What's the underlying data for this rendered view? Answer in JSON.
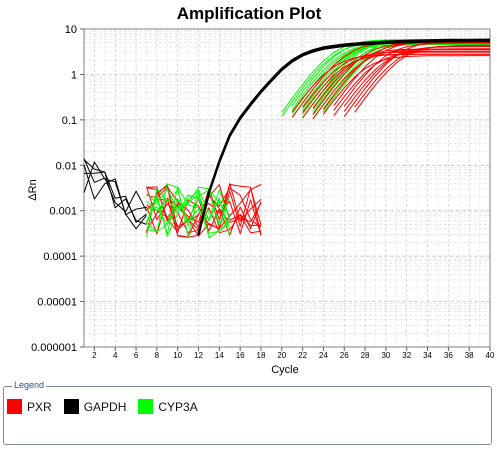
{
  "chart_data": {
    "type": "line",
    "title": "Amplification Plot",
    "xlabel": "Cycle",
    "ylabel": "ΔRn",
    "xlim": [
      1,
      40
    ],
    "ylim": [
      1e-06,
      10
    ],
    "yscale": "log",
    "grid": true,
    "x_ticks": [
      2,
      4,
      6,
      8,
      10,
      12,
      14,
      16,
      18,
      20,
      22,
      24,
      26,
      28,
      30,
      32,
      34,
      36,
      38,
      40
    ],
    "y_ticks": [
      {
        "value": 10,
        "label": "10"
      },
      {
        "value": 1,
        "label": "1"
      },
      {
        "value": 0.1,
        "label": "0.1"
      },
      {
        "value": 0.01,
        "label": "0.01"
      },
      {
        "value": 0.001,
        "label": "0.001"
      },
      {
        "value": 0.0001,
        "label": "0.0001"
      },
      {
        "value": 1e-05,
        "label": "0.00001"
      },
      {
        "value": 1e-06,
        "label": "0.000001"
      }
    ],
    "legend_position": "bottom",
    "series": [
      {
        "name": "PXR",
        "color": "#ff0000",
        "group_description": "approx. 18 wells",
        "baseline_x": [
          7,
          8,
          9,
          10,
          11,
          12,
          13,
          14,
          15,
          16,
          17,
          18
        ],
        "ct_range": [
          22,
          28
        ],
        "plateau": [
          2.5,
          5.5
        ]
      },
      {
        "name": "GAPDH",
        "color": "#000000",
        "group_description": "approx. 6 wells",
        "baseline_x": [
          1,
          2,
          3,
          4,
          5,
          6,
          7
        ],
        "x": [
          12,
          13,
          14,
          15,
          16,
          17,
          18,
          19,
          20,
          21,
          22,
          23,
          24,
          25,
          26,
          27,
          28,
          29,
          30,
          32,
          34,
          36,
          38,
          40
        ],
        "y": [
          0.0003,
          0.0025,
          0.012,
          0.045,
          0.11,
          0.22,
          0.42,
          0.75,
          1.3,
          2.0,
          2.7,
          3.3,
          3.8,
          4.1,
          4.4,
          4.6,
          4.8,
          4.95,
          5.1,
          5.3,
          5.45,
          5.55,
          5.6,
          5.65
        ]
      },
      {
        "name": "CYP3A",
        "color": "#00ff00",
        "group_description": "approx. 16 wells",
        "baseline_x": [
          7,
          8,
          9,
          10,
          11,
          12,
          13,
          14,
          15
        ],
        "ct_range": [
          21,
          25
        ],
        "plateau": [
          4.5,
          6.0
        ]
      }
    ]
  },
  "legend": {
    "caption": "Legend",
    "items": [
      {
        "label": "PXR",
        "color": "#ff0000"
      },
      {
        "label": "GAPDH",
        "color": "#000000"
      },
      {
        "label": "CYP3A",
        "color": "#00ff00"
      }
    ]
  }
}
